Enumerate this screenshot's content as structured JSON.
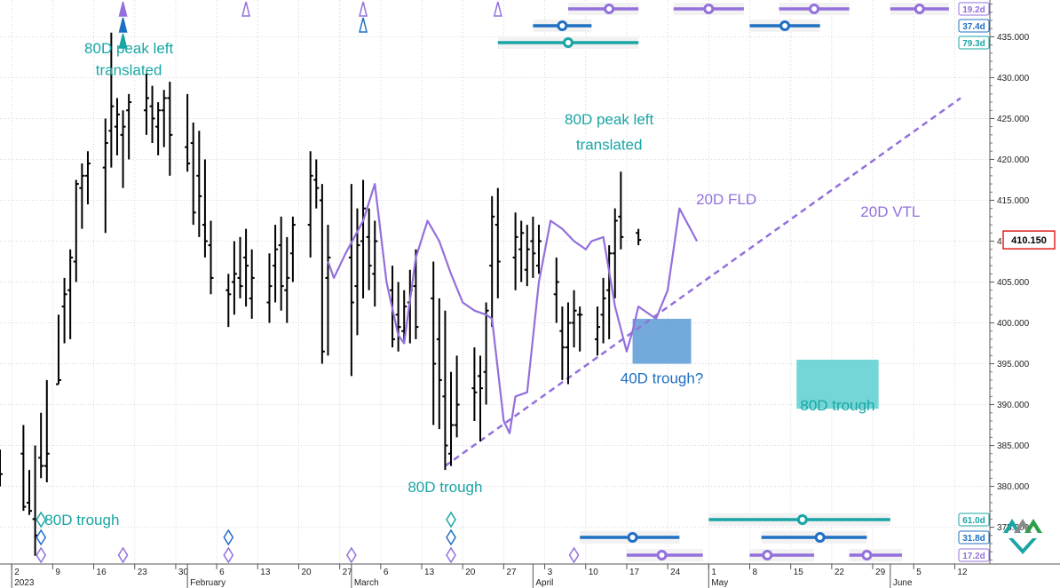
{
  "chart_data": {
    "type": "ohlc",
    "ylim": [
      370.5,
      439.5
    ],
    "yticks": [
      "375.000",
      "380.000",
      "385.000",
      "390.000",
      "395.000",
      "400.000",
      "405.000",
      "410.000",
      "415.000",
      "420.000",
      "425.000",
      "430.000",
      "435.000"
    ],
    "ytick_values": [
      375,
      380,
      385,
      390,
      395,
      400,
      405,
      410,
      415,
      420,
      425,
      430,
      435
    ],
    "xticks": [
      "2",
      "9",
      "16",
      "23",
      "30",
      "6",
      "13",
      "20",
      "27",
      "6",
      "13",
      "20",
      "27",
      "3",
      "10",
      "17",
      "24",
      "1",
      "8",
      "15",
      "22",
      "29",
      "5",
      "12"
    ],
    "xtick_days": [
      0,
      7,
      14,
      21,
      28,
      35,
      42,
      49,
      56,
      63,
      70,
      77,
      84,
      91,
      98,
      105,
      112,
      119,
      126,
      133,
      140,
      147,
      154,
      161
    ],
    "xlim_days": [
      -2,
      167
    ],
    "month_labels": [
      {
        "label": "2023",
        "day": 0
      },
      {
        "label": "February",
        "day": 30
      },
      {
        "label": "March",
        "day": 58
      },
      {
        "label": "April",
        "day": 89
      },
      {
        "label": "May",
        "day": 119
      },
      {
        "label": "June",
        "day": 150
      }
    ],
    "last_price": "410.150",
    "last_price_value": 410.15,
    "bars": [
      {
        "d": -2,
        "h": 384.5,
        "l": 380.0,
        "o": 383.0,
        "c": 381.5
      },
      {
        "d": 2,
        "h": 387.5,
        "l": 377.0,
        "o": 384.0,
        "c": 377.5
      },
      {
        "d": 3,
        "h": 382.0,
        "l": 376.5,
        "o": 378.0,
        "c": 377.0
      },
      {
        "d": 4,
        "h": 385.0,
        "l": 371.5,
        "o": 376.0,
        "c": 374.0
      },
      {
        "d": 5,
        "h": 389.0,
        "l": 381.0,
        "o": 383.5,
        "c": 382.5
      },
      {
        "d": 6,
        "h": 393.0,
        "l": 380.5,
        "o": 382.5,
        "c": 384.0
      },
      {
        "d": 8,
        "h": 401.0,
        "l": 392.5,
        "o": 392.5,
        "c": 393.0
      },
      {
        "d": 9,
        "h": 405.5,
        "l": 397.5,
        "o": 402.0,
        "c": 403.5
      },
      {
        "d": 10,
        "h": 409.0,
        "l": 398.0,
        "o": 404.0,
        "c": 408.0
      },
      {
        "d": 11,
        "h": 417.5,
        "l": 405.0,
        "o": 407.5,
        "c": 417.0
      },
      {
        "d": 12,
        "h": 419.5,
        "l": 411.5,
        "o": 416.5,
        "c": 418.0
      },
      {
        "d": 13,
        "h": 421.0,
        "l": 414.5,
        "o": 418.0,
        "c": 419.5
      },
      {
        "d": 16,
        "h": 425.0,
        "l": 411.0,
        "o": 419.0,
        "c": 422.0
      },
      {
        "d": 17,
        "h": 435.5,
        "l": 419.0,
        "o": 423.5,
        "c": 426.5
      },
      {
        "d": 18,
        "h": 427.5,
        "l": 420.5,
        "o": 424.0,
        "c": 425.5
      },
      {
        "d": 19,
        "h": 426.0,
        "l": 416.5,
        "o": 423.0,
        "c": 424.0
      },
      {
        "d": 20,
        "h": 428.0,
        "l": 420.0,
        "o": 426.0,
        "c": 427.0
      },
      {
        "d": 23,
        "h": 430.5,
        "l": 423.0,
        "o": 426.0,
        "c": 427.5
      },
      {
        "d": 24,
        "h": 429.0,
        "l": 422.0,
        "o": 426.5,
        "c": 425.0
      },
      {
        "d": 25,
        "h": 427.0,
        "l": 420.5,
        "o": 424.0,
        "c": 426.0
      },
      {
        "d": 26,
        "h": 428.5,
        "l": 421.5,
        "o": 426.0,
        "c": 427.5
      },
      {
        "d": 27,
        "h": 429.5,
        "l": 418.0,
        "o": 427.5,
        "c": 423.0
      },
      {
        "d": 30,
        "h": 428.0,
        "l": 418.5,
        "o": 421.5,
        "c": 419.5
      },
      {
        "d": 31,
        "h": 424.5,
        "l": 412.0,
        "o": 422.0,
        "c": 413.5
      },
      {
        "d": 32,
        "h": 423.5,
        "l": 410.5,
        "o": 418.0,
        "c": 415.5
      },
      {
        "d": 33,
        "h": 420.0,
        "l": 408.0,
        "o": 412.0,
        "c": 410.0
      },
      {
        "d": 34,
        "h": 412.5,
        "l": 403.5,
        "o": 409.5,
        "c": 405.5
      },
      {
        "d": 37,
        "h": 406.0,
        "l": 399.5,
        "o": 404.0,
        "c": 403.5
      },
      {
        "d": 38,
        "h": 410.0,
        "l": 401.0,
        "o": 405.0,
        "c": 406.0
      },
      {
        "d": 39,
        "h": 410.5,
        "l": 403.0,
        "o": 405.5,
        "c": 404.5
      },
      {
        "d": 40,
        "h": 411.5,
        "l": 402.0,
        "o": 408.0,
        "c": 407.0
      },
      {
        "d": 41,
        "h": 409.0,
        "l": 400.5,
        "o": 403.0,
        "c": 405.5
      },
      {
        "d": 44,
        "h": 408.5,
        "l": 400.0,
        "o": 402.5,
        "c": 404.5
      },
      {
        "d": 45,
        "h": 412.0,
        "l": 402.5,
        "o": 407.0,
        "c": 409.0
      },
      {
        "d": 46,
        "h": 413.0,
        "l": 401.5,
        "o": 409.5,
        "c": 404.5
      },
      {
        "d": 47,
        "h": 410.5,
        "l": 400.0,
        "o": 404.0,
        "c": 405.5
      },
      {
        "d": 48,
        "h": 413.0,
        "l": 405.0,
        "o": 408.5,
        "c": 412.0
      },
      {
        "d": 51,
        "h": 421.0,
        "l": 408.0,
        "o": 412.0,
        "c": 418.0
      },
      {
        "d": 52,
        "h": 420.0,
        "l": 414.0,
        "o": 417.5,
        "c": 416.5
      },
      {
        "d": 53,
        "h": 417.0,
        "l": 395.0,
        "o": 415.0,
        "c": 396.5
      },
      {
        "d": 54,
        "h": 412.0,
        "l": 396.0,
        "o": 405.5,
        "c": 408.0
      },
      {
        "d": 58,
        "h": 417.0,
        "l": 393.5,
        "o": 408.0,
        "c": 402.5
      },
      {
        "d": 59,
        "h": 414.0,
        "l": 398.5,
        "o": 404.5,
        "c": 409.5
      },
      {
        "d": 60,
        "h": 417.5,
        "l": 403.0,
        "o": 410.0,
        "c": 414.0
      },
      {
        "d": 61,
        "h": 414.0,
        "l": 404.0,
        "o": 410.5,
        "c": 407.0
      },
      {
        "d": 62,
        "h": 412.5,
        "l": 402.0,
        "o": 406.0,
        "c": 410.0
      },
      {
        "d": 65,
        "h": 407.0,
        "l": 397.0,
        "o": 404.0,
        "c": 398.0
      },
      {
        "d": 66,
        "h": 405.0,
        "l": 396.5,
        "o": 401.0,
        "c": 399.5
      },
      {
        "d": 67,
        "h": 404.0,
        "l": 397.5,
        "o": 399.0,
        "c": 402.0
      },
      {
        "d": 68,
        "h": 406.5,
        "l": 397.5,
        "o": 402.5,
        "c": 404.0
      },
      {
        "d": 69,
        "h": 409.0,
        "l": 398.0,
        "o": 404.5,
        "c": 399.5
      },
      {
        "d": 72,
        "h": 407.5,
        "l": 387.5,
        "o": 403.0,
        "c": 395.0
      },
      {
        "d": 73,
        "h": 403.0,
        "l": 387.0,
        "o": 398.0,
        "c": 393.0
      },
      {
        "d": 74,
        "h": 401.5,
        "l": 382.0,
        "o": 391.0,
        "c": 385.0
      },
      {
        "d": 75,
        "h": 394.0,
        "l": 382.5,
        "o": 384.0,
        "c": 387.5
      },
      {
        "d": 76,
        "h": 396.0,
        "l": 386.0,
        "o": 387.5,
        "c": 390.0
      },
      {
        "d": 79,
        "h": 397.0,
        "l": 388.0,
        "o": 392.0,
        "c": 391.5
      },
      {
        "d": 80,
        "h": 396.0,
        "l": 385.5,
        "o": 393.5,
        "c": 392.0
      },
      {
        "d": 81,
        "h": 402.5,
        "l": 390.0,
        "o": 394.0,
        "c": 401.5
      },
      {
        "d": 82,
        "h": 415.5,
        "l": 399.5,
        "o": 407.0,
        "c": 413.0
      },
      {
        "d": 83,
        "h": 416.5,
        "l": 403.0,
        "o": 412.0,
        "c": 407.5
      },
      {
        "d": 86,
        "h": 413.5,
        "l": 404.0,
        "o": 408.0,
        "c": 410.5
      },
      {
        "d": 87,
        "h": 412.5,
        "l": 405.0,
        "o": 409.0,
        "c": 411.0
      },
      {
        "d": 88,
        "h": 412.0,
        "l": 404.5,
        "o": 406.5,
        "c": 409.0
      },
      {
        "d": 89,
        "h": 413.0,
        "l": 405.5,
        "o": 410.0,
        "c": 408.5
      },
      {
        "d": 90,
        "h": 412.0,
        "l": 406.0,
        "o": 407.0,
        "c": 410.0
      },
      {
        "d": 93,
        "h": 408.0,
        "l": 400.0,
        "o": 403.5,
        "c": 405.0
      },
      {
        "d": 94,
        "h": 402.0,
        "l": 393.0,
        "o": 399.0,
        "c": 397.0
      },
      {
        "d": 95,
        "h": 402.5,
        "l": 392.5,
        "o": 397.0,
        "c": 400.0
      },
      {
        "d": 96,
        "h": 404.0,
        "l": 397.0,
        "o": 400.0,
        "c": 401.5
      },
      {
        "d": 97,
        "h": 402.0,
        "l": 396.5,
        "o": 401.0,
        "c": 401.0
      },
      {
        "d": 100,
        "h": 402.0,
        "l": 396.0,
        "o": 398.0,
        "c": 399.5
      },
      {
        "d": 101,
        "h": 405.5,
        "l": 397.5,
        "o": 401.0,
        "c": 403.0
      },
      {
        "d": 102,
        "h": 409.5,
        "l": 398.0,
        "o": 404.0,
        "c": 408.5
      },
      {
        "d": 103,
        "h": 414.0,
        "l": 403.0,
        "o": 408.5,
        "c": 412.5
      },
      {
        "d": 104,
        "h": 418.5,
        "l": 409.0,
        "o": 413.0,
        "c": 410.5
      },
      {
        "d": 107,
        "h": 411.5,
        "l": 409.5,
        "o": 411.0,
        "c": 410.15
      }
    ],
    "fld": {
      "label": "20D FLD",
      "points": [
        [
          54,
          407.5
        ],
        [
          55,
          405.5
        ],
        [
          57,
          408.5
        ],
        [
          60,
          412.5
        ],
        [
          62,
          417.0
        ],
        [
          64,
          405.0
        ],
        [
          66,
          398.5
        ],
        [
          67,
          397.5
        ],
        [
          69,
          408.0
        ],
        [
          71,
          412.5
        ],
        [
          73,
          410.0
        ],
        [
          75,
          406.0
        ],
        [
          77,
          402.5
        ],
        [
          79,
          401.5
        ],
        [
          81,
          401.0
        ],
        [
          82,
          400.5
        ],
        [
          84,
          388.0
        ],
        [
          85,
          386.5
        ],
        [
          86,
          391.0
        ],
        [
          88,
          391.5
        ],
        [
          90,
          405.0
        ],
        [
          92,
          412.5
        ],
        [
          94,
          411.5
        ],
        [
          96,
          410.0
        ],
        [
          98,
          409.0
        ],
        [
          99,
          410.0
        ],
        [
          101,
          410.5
        ],
        [
          103,
          402.0
        ],
        [
          105,
          396.5
        ],
        [
          106,
          399.0
        ],
        [
          107,
          402.0
        ],
        [
          110,
          400.5
        ],
        [
          112,
          404.0
        ],
        [
          114,
          414.0
        ],
        [
          117,
          410.0
        ]
      ]
    },
    "vtl": {
      "label": "20D VTL",
      "start": [
        74,
        382.5
      ],
      "end": [
        162,
        427.5
      ]
    },
    "trough_boxes": [
      {
        "label": "40D trough?",
        "x0": 106,
        "x1": 116,
        "ymin": 395.0,
        "ymax": 400.5,
        "color": "#5b9bd5"
      },
      {
        "label": "80D trough",
        "x0": 134,
        "x1": 148,
        "ymin": 389.5,
        "ymax": 395.5,
        "color": "#5ccfcf"
      }
    ],
    "annotations": [
      {
        "text": "80D peak left",
        "x": 20,
        "y": 433.0,
        "color": "#1aa5a5"
      },
      {
        "text": "translated",
        "x": 20,
        "y": 430.3,
        "color": "#1aa5a5"
      },
      {
        "text": "80D trough",
        "x": 12,
        "y": 375.3,
        "color": "#1aa5a5"
      },
      {
        "text": "80D peak left",
        "x": 102,
        "y": 424.3,
        "color": "#1aa5a5"
      },
      {
        "text": "translated",
        "x": 102,
        "y": 421.2,
        "color": "#1aa5a5"
      },
      {
        "text": "80D trough",
        "x": 74,
        "y": 379.3,
        "color": "#1aa5a5"
      },
      {
        "text": "20D FLD",
        "x": 122,
        "y": 414.5,
        "color": "#9370db"
      },
      {
        "text": "20D VTL",
        "x": 150,
        "y": 413.0,
        "color": "#9370db"
      },
      {
        "text": "40D trough?",
        "x": 111,
        "y": 392.6,
        "color": "#1f6fc2"
      },
      {
        "text": "80D trough",
        "x": 141,
        "y": 389.3,
        "color": "#1aa5a5"
      }
    ],
    "top_cycle_bars": [
      {
        "badge": "19.2d",
        "color": "#9370db",
        "lines": [
          [
            95,
            107,
            102
          ],
          [
            113,
            125,
            119
          ],
          [
            131,
            143,
            137
          ],
          [
            150,
            160,
            155
          ]
        ]
      },
      {
        "badge": "37.4d",
        "color": "#1f6fc2",
        "lines": [
          [
            89,
            99,
            94
          ],
          [
            126,
            138,
            132
          ]
        ]
      },
      {
        "badge": "79.3d",
        "color": "#1aa5a5",
        "lines": [
          [
            83,
            107,
            95
          ]
        ]
      }
    ],
    "bottom_cycle_bars": [
      {
        "badge": "61.0d",
        "color": "#1aa5a5",
        "lines": [
          [
            119,
            150,
            135
          ]
        ]
      },
      {
        "badge": "31.8d",
        "color": "#1f6fc2",
        "lines": [
          [
            97,
            114,
            106
          ],
          [
            128,
            146,
            138
          ]
        ]
      },
      {
        "badge": "17.2d",
        "color": "#9370db",
        "lines": [
          [
            105,
            118,
            111
          ],
          [
            126,
            137,
            129
          ],
          [
            143,
            152,
            146
          ]
        ]
      }
    ],
    "top_markers": [
      {
        "d": 19,
        "type": "filled",
        "color": "#9370db",
        "row": 0
      },
      {
        "d": 19,
        "type": "filled",
        "color": "#1f6fc2",
        "row": 1
      },
      {
        "d": 19,
        "type": "filled",
        "color": "#1aa5a5",
        "row": 2
      },
      {
        "d": 40,
        "type": "open",
        "color": "#9370db",
        "row": 0
      },
      {
        "d": 60,
        "type": "open",
        "color": "#9370db",
        "row": 0
      },
      {
        "d": 60,
        "type": "open",
        "color": "#1f6fc2",
        "row": 1
      },
      {
        "d": 83,
        "type": "open",
        "color": "#9370db",
        "row": 0
      }
    ],
    "bottom_markers": [
      {
        "d": 5,
        "color": "#1aa5a5",
        "row": 0
      },
      {
        "d": 5,
        "color": "#1f6fc2",
        "row": 1
      },
      {
        "d": 5,
        "color": "#9370db",
        "row": 2
      },
      {
        "d": 19,
        "color": "#9370db",
        "row": 2
      },
      {
        "d": 37,
        "color": "#1f6fc2",
        "row": 1
      },
      {
        "d": 37,
        "color": "#9370db",
        "row": 2
      },
      {
        "d": 58,
        "color": "#9370db",
        "row": 2
      },
      {
        "d": 75,
        "color": "#1aa5a5",
        "row": 0
      },
      {
        "d": 75,
        "color": "#1f6fc2",
        "row": 1
      },
      {
        "d": 75,
        "color": "#9370db",
        "row": 2
      },
      {
        "d": 96,
        "color": "#9370db",
        "row": 2
      }
    ],
    "colors": {
      "price": "#000000",
      "purple": "#9370db",
      "blue": "#1f6fc2",
      "teal": "#1aa5a5",
      "grid": "#d8d8d8",
      "last_price_border": "#e02020"
    }
  }
}
